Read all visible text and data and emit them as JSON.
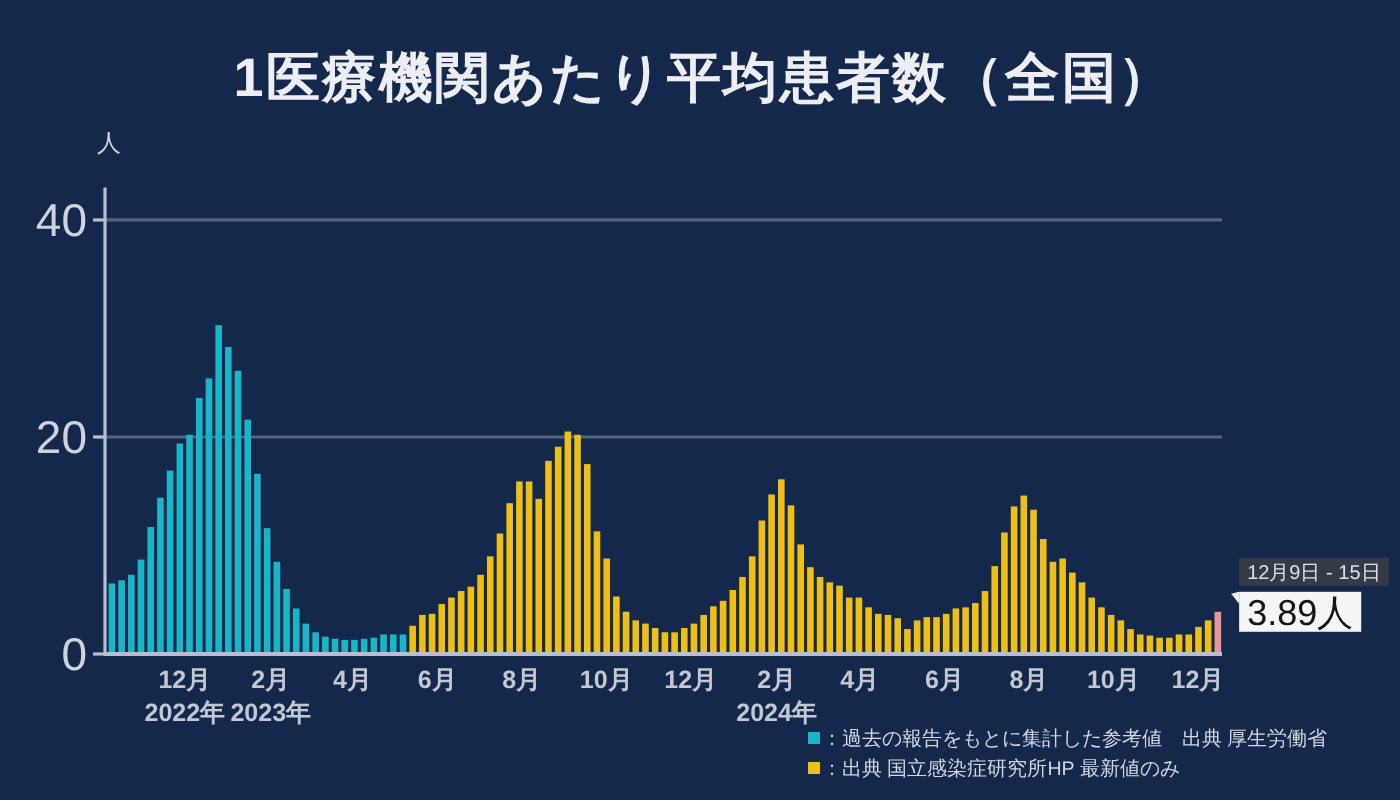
{
  "chart_data": {
    "type": "bar",
    "title": "1医療機関あたり平均患者数（全国）",
    "ylabel": "人",
    "xlim": [
      "2022-10-04",
      "2024-12-18"
    ],
    "xticks": [
      {
        "value": "2022-12-01",
        "label": "12月\n2022年"
      },
      {
        "value": "2023-02-01",
        "label": "2月\n2023年"
      },
      {
        "value": "2023-04-01",
        "label": "4月"
      },
      {
        "value": "2023-06-01",
        "label": "6月"
      },
      {
        "value": "2023-08-01",
        "label": "8月"
      },
      {
        "value": "2023-10-01",
        "label": "10月"
      },
      {
        "value": "2023-12-01",
        "label": "12月"
      },
      {
        "value": "2024-02-01",
        "label": "2月\n2024年"
      },
      {
        "value": "2024-04-01",
        "label": "4月"
      },
      {
        "value": "2024-06-01",
        "label": "6月"
      },
      {
        "value": "2024-08-01",
        "label": "8月"
      },
      {
        "value": "2024-10-01",
        "label": "10月"
      },
      {
        "value": "2024-12-01",
        "label": "12月"
      }
    ],
    "ylim": [
      0,
      43
    ],
    "yticks": [
      0,
      20,
      40
    ],
    "grid": "y",
    "legend": "bottom right",
    "series": [
      {
        "name": "：過去の報告をもとに集計した参考値　出典 厚生労働省",
        "color": "#19b6c7",
        "x": [
          "2022-10-09",
          "2022-10-16",
          "2022-10-23",
          "2022-10-30",
          "2022-11-06",
          "2022-11-13",
          "2022-11-20",
          "2022-11-27",
          "2022-12-04",
          "2022-12-11",
          "2022-12-18",
          "2022-12-25",
          "2023-01-01",
          "2023-01-08",
          "2023-01-15",
          "2023-01-22",
          "2023-01-29",
          "2023-02-05",
          "2023-02-12",
          "2023-02-19",
          "2023-02-26",
          "2023-03-05",
          "2023-03-12",
          "2023-03-19",
          "2023-03-26",
          "2023-04-02",
          "2023-04-09",
          "2023-04-16",
          "2023-04-23",
          "2023-04-30",
          "2023-05-07"
        ],
        "values": [
          6.5,
          6.8,
          7.3,
          8.7,
          11.7,
          14.4,
          16.9,
          19.4,
          20.2,
          23.6,
          25.4,
          30.3,
          28.3,
          26.1,
          21.6,
          16.6,
          11.6,
          8.5,
          6.0,
          4.2,
          2.8,
          2.0,
          1.6,
          1.4,
          1.3,
          1.3,
          1.4,
          1.5,
          1.8,
          1.8,
          1.8
        ]
      },
      {
        "name": "：出典 国立感染症研究所HP 最新値のみ",
        "color": "#eebf16",
        "x": [
          "2023-05-14",
          "2023-05-21",
          "2023-05-28",
          "2023-06-04",
          "2023-06-11",
          "2023-06-18",
          "2023-06-25",
          "2023-07-02",
          "2023-07-09",
          "2023-07-16",
          "2023-07-23",
          "2023-07-30",
          "2023-08-06",
          "2023-08-13",
          "2023-08-20",
          "2023-08-27",
          "2023-09-03",
          "2023-09-10",
          "2023-09-17",
          "2023-09-24",
          "2023-10-01",
          "2023-10-08",
          "2023-10-15",
          "2023-10-22",
          "2023-10-29",
          "2023-11-05",
          "2023-11-12",
          "2023-11-19",
          "2023-11-26",
          "2023-12-03",
          "2023-12-10",
          "2023-12-17",
          "2023-12-24",
          "2023-12-31",
          "2024-01-07",
          "2024-01-14",
          "2024-01-21",
          "2024-01-28",
          "2024-02-04",
          "2024-02-11",
          "2024-02-18",
          "2024-02-25",
          "2024-03-03",
          "2024-03-10",
          "2024-03-17",
          "2024-03-24",
          "2024-03-31",
          "2024-04-07",
          "2024-04-14",
          "2024-04-21",
          "2024-04-28",
          "2024-05-05",
          "2024-05-12",
          "2024-05-19",
          "2024-05-26",
          "2024-06-02",
          "2024-06-09",
          "2024-06-16",
          "2024-06-23",
          "2024-06-30",
          "2024-07-07",
          "2024-07-14",
          "2024-07-21",
          "2024-07-28",
          "2024-08-04",
          "2024-08-11",
          "2024-08-18",
          "2024-08-25",
          "2024-09-01",
          "2024-09-08",
          "2024-09-15",
          "2024-09-22",
          "2024-09-29",
          "2024-10-06",
          "2024-10-13",
          "2024-10-20",
          "2024-10-27",
          "2024-11-03",
          "2024-11-10",
          "2024-11-17",
          "2024-11-24",
          "2024-12-01",
          "2024-12-08"
        ],
        "values": [
          2.6,
          3.6,
          3.7,
          4.6,
          5.2,
          5.8,
          6.2,
          7.3,
          9.0,
          11.1,
          13.9,
          15.9,
          15.9,
          14.3,
          17.8,
          19.1,
          20.5,
          20.2,
          17.5,
          11.3,
          8.8,
          5.3,
          3.9,
          3.1,
          2.8,
          2.4,
          2.0,
          2.0,
          2.4,
          2.8,
          3.6,
          4.4,
          4.9,
          5.9,
          7.1,
          9.0,
          12.3,
          14.7,
          16.1,
          13.7,
          10.1,
          8.0,
          7.1,
          6.6,
          6.3,
          5.2,
          5.2,
          4.3,
          3.7,
          3.6,
          3.3,
          2.3,
          3.1,
          3.4,
          3.4,
          3.7,
          4.2,
          4.3,
          4.7,
          5.8,
          8.1,
          11.2,
          13.6,
          14.6,
          13.3,
          10.6,
          8.5,
          8.8,
          7.5,
          6.6,
          5.2,
          4.3,
          3.6,
          3.1,
          2.3,
          1.8,
          1.7,
          1.5,
          1.5,
          1.8,
          1.8,
          2.5,
          3.1
        ]
      },
      {
        "color": "#e8969a",
        "x": [
          "2024-12-15"
        ],
        "values": [
          3.89
        ]
      }
    ],
    "annotations": [
      {
        "text": "12月9日 - 15日",
        "x": "2024-12-15",
        "y": 3.89
      },
      {
        "text": "3.89人",
        "x": "2024-12-15",
        "y": 3.89
      }
    ]
  }
}
